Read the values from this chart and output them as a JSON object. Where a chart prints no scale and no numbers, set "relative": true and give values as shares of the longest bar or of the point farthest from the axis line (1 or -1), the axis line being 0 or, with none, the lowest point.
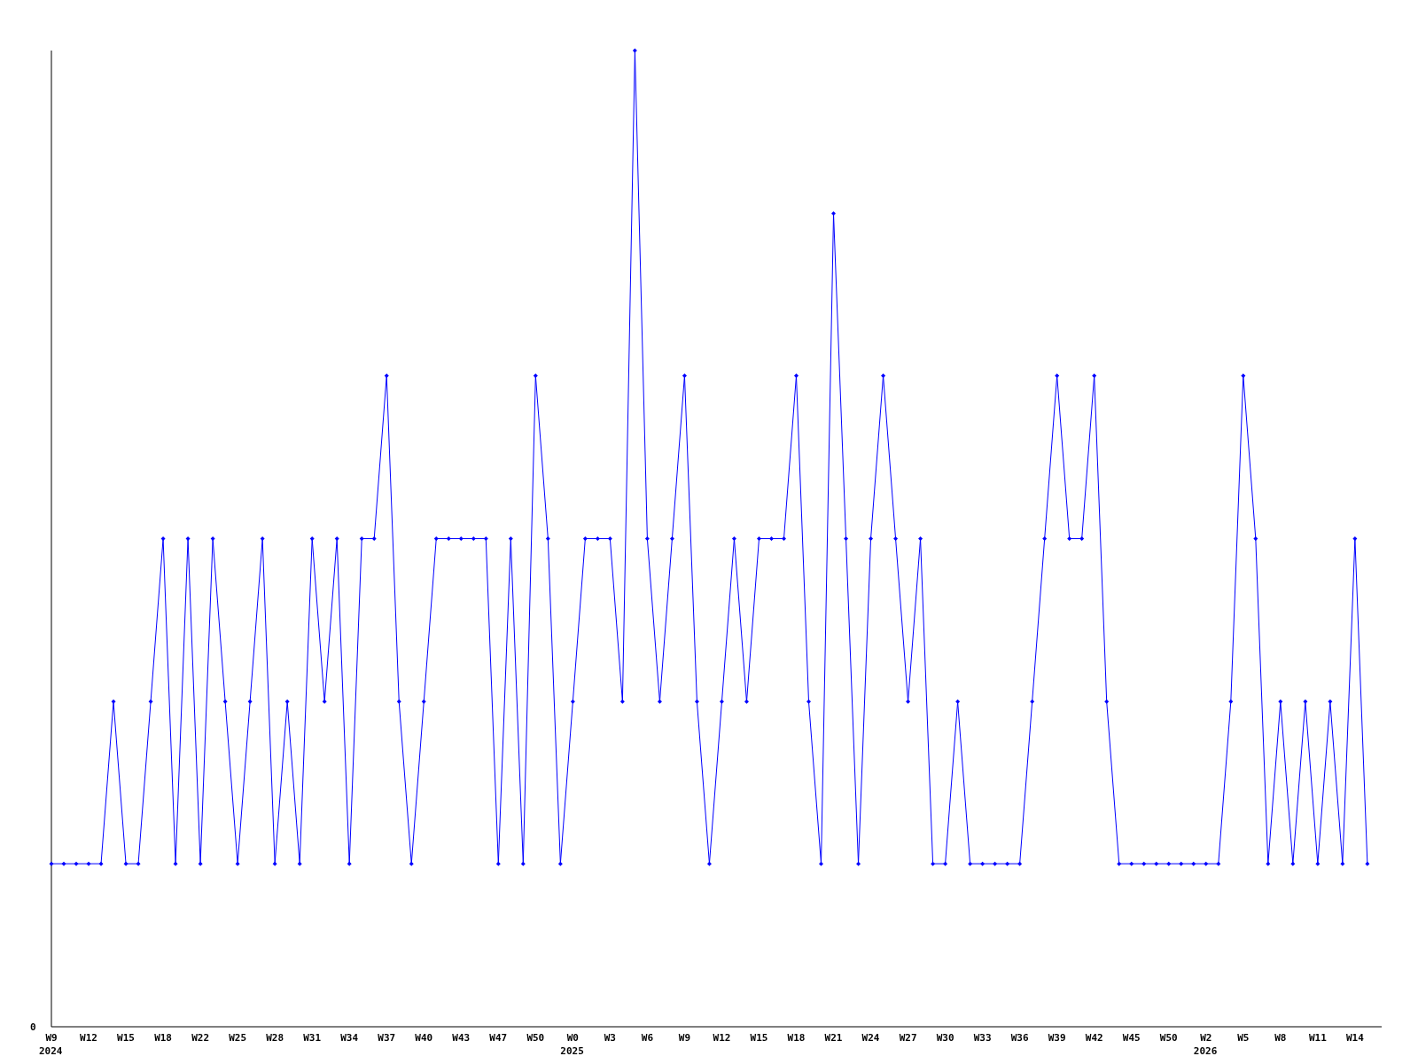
{
  "chart_data": {
    "type": "line",
    "relative": true,
    "marker": "diamond",
    "categories": [
      "W9\n2024",
      null,
      null,
      "W12",
      null,
      null,
      "W15",
      null,
      null,
      "W18",
      null,
      null,
      "W22",
      null,
      null,
      "W25",
      null,
      null,
      "W28",
      null,
      null,
      "W31",
      null,
      null,
      "W34",
      null,
      null,
      "W37",
      null,
      null,
      "W40",
      null,
      null,
      "W43",
      null,
      null,
      "W47",
      null,
      null,
      "W50",
      null,
      null,
      "W0\n2025",
      null,
      null,
      "W3",
      null,
      null,
      "W6",
      null,
      null,
      "W9",
      null,
      null,
      "W12",
      null,
      null,
      "W15",
      null,
      null,
      "W18",
      null,
      null,
      "W21",
      null,
      null,
      "W24",
      null,
      null,
      "W27",
      null,
      null,
      "W30",
      null,
      null,
      "W33",
      null,
      null,
      "W36",
      null,
      null,
      "W39",
      null,
      null,
      "W42",
      null,
      null,
      "W45",
      null,
      null,
      "W50",
      null,
      null,
      "W2\n2026",
      null,
      null,
      "W5",
      null,
      null,
      "W8",
      null,
      null,
      "W11",
      null,
      null,
      "W14",
      null
    ],
    "series": [
      {
        "color": "#0000ff",
        "values": [
          0.167,
          0.167,
          0.167,
          0.167,
          0.167,
          0.333,
          0.167,
          0.167,
          0.333,
          0.5,
          0.167,
          0.5,
          0.167,
          0.5,
          0.333,
          0.167,
          0.333,
          0.5,
          0.167,
          0.333,
          0.167,
          0.5,
          0.333,
          0.5,
          0.167,
          0.5,
          0.5,
          0.667,
          0.333,
          0.167,
          0.333,
          0.5,
          0.5,
          0.5,
          0.5,
          0.5,
          0.167,
          0.5,
          0.167,
          0.667,
          0.5,
          0.167,
          0.333,
          0.5,
          0.5,
          0.5,
          0.333,
          1,
          0.5,
          0.333,
          0.5,
          0.667,
          0.333,
          0.167,
          0.333,
          0.5,
          0.333,
          0.5,
          0.5,
          0.5,
          0.667,
          0.333,
          0.167,
          0.833,
          0.5,
          0.167,
          0.5,
          0.667,
          0.5,
          0.333,
          0.5,
          0.167,
          0.167,
          0.333,
          0.167,
          0.167,
          0.167,
          0.167,
          0.167,
          0.333,
          0.5,
          0.667,
          0.5,
          0.5,
          0.667,
          0.333,
          0.167,
          0.167,
          0.167,
          0.167,
          0.167,
          0.167,
          0.167,
          0.167,
          0.167,
          0.333,
          0.667,
          0.5,
          0.167,
          0.333,
          0.167,
          0.333,
          0.167,
          0.333,
          0.167,
          0.5,
          0.167
        ]
      }
    ],
    "annotations": [
      "0"
    ]
  }
}
